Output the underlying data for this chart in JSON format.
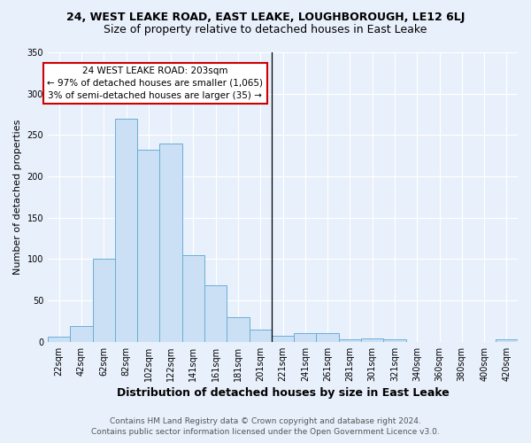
{
  "title": "24, WEST LEAKE ROAD, EAST LEAKE, LOUGHBOROUGH, LE12 6LJ",
  "subtitle": "Size of property relative to detached houses in East Leake",
  "xlabel": "Distribution of detached houses by size in East Leake",
  "ylabel": "Number of detached properties",
  "bar_labels": [
    "22sqm",
    "42sqm",
    "62sqm",
    "82sqm",
    "102sqm",
    "122sqm",
    "141sqm",
    "161sqm",
    "181sqm",
    "201sqm",
    "221sqm",
    "241sqm",
    "261sqm",
    "281sqm",
    "301sqm",
    "321sqm",
    "340sqm",
    "360sqm",
    "380sqm",
    "400sqm",
    "420sqm"
  ],
  "bar_values": [
    6,
    19,
    100,
    270,
    232,
    240,
    105,
    68,
    30,
    15,
    7,
    10,
    11,
    3,
    4,
    3,
    0,
    0,
    0,
    0,
    3
  ],
  "bar_color": "#cce0f5",
  "bar_edge_color": "#6aaed6",
  "vline_color": "#000000",
  "annotation_line1": "24 WEST LEAKE ROAD: 203sqm",
  "annotation_line2": "← 97% of detached houses are smaller (1,065)",
  "annotation_line3": "3% of semi-detached houses are larger (35) →",
  "annotation_box_color": "#ffffff",
  "annotation_box_edge_color": "#cc0000",
  "ylim": [
    0,
    350
  ],
  "yticks": [
    0,
    50,
    100,
    150,
    200,
    250,
    300,
    350
  ],
  "background_color": "#e8f0fb",
  "grid_color": "#ffffff",
  "footer_line1": "Contains HM Land Registry data © Crown copyright and database right 2024.",
  "footer_line2": "Contains public sector information licensed under the Open Government Licence v3.0.",
  "title_fontsize": 9,
  "subtitle_fontsize": 9,
  "xlabel_fontsize": 9,
  "ylabel_fontsize": 8,
  "annotation_fontsize": 7.5,
  "footer_fontsize": 6.5,
  "tick_fontsize": 7
}
